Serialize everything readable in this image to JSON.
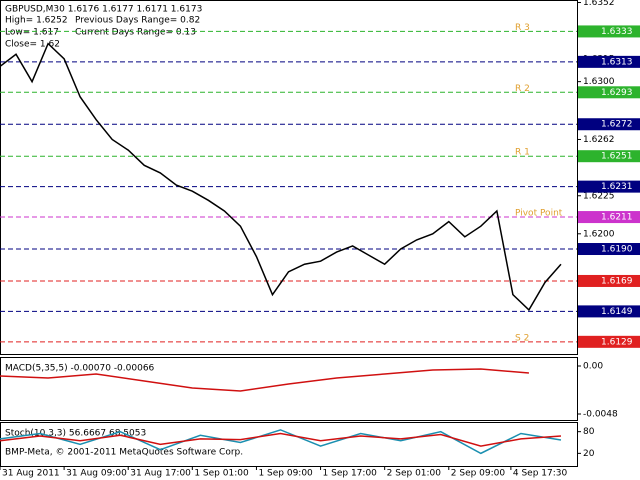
{
  "header": {
    "symbol": "GBPUSD,M30  1.6176 1.6177 1.6171 1.6173",
    "high": "High= 1.6252",
    "prev_range": "Previous Days Range= 0.82",
    "low": "Low= 1.617",
    "cur_range": "Current Days Range= 0.13",
    "close": "Close= 1.62"
  },
  "copyright": "BMP-Meta, © 2001-2011 MetaQuotes Software Corp.",
  "chart_data": [
    {
      "type": "line",
      "title": "GBPUSD,M30",
      "xlim": [
        1,
        73
      ],
      "ylim": [
        1.6121,
        1.6353
      ],
      "xticks": [
        {
          "value": 1,
          "label": "31 Aug 2011"
        },
        {
          "value": 9,
          "label": "31 Aug 09:00"
        },
        {
          "value": 17,
          "label": "31 Aug 17:00"
        },
        {
          "value": 25,
          "label": "1 Sep 01:00"
        },
        {
          "value": 33,
          "label": "1 Sep 09:00"
        },
        {
          "value": 41,
          "label": "1 Sep 17:00"
        },
        {
          "value": 49,
          "label": "2 Sep 01:00"
        },
        {
          "value": 57,
          "label": "2 Sep 09:00"
        },
        {
          "value": 64.75,
          "label": "4 Sep 17:30"
        }
      ],
      "yticks": [
        1.6352,
        1.6315,
        {
          "value": 1.63,
          "label": "1.6300"
        },
        1.6262,
        1.6225,
        {
          "value": 1.62,
          "label": "1.6200"
        }
      ],
      "levels": [
        {
          "value": 1.6333,
          "color": "#2db32d",
          "name": "R 3"
        },
        {
          "value": 1.6313,
          "color": "#000080"
        },
        {
          "value": 1.6293,
          "color": "#2db32d",
          "name": "R 2"
        },
        {
          "value": 1.6272,
          "color": "#000080"
        },
        {
          "value": 1.6251,
          "color": "#2db32d",
          "name": "R 1"
        },
        {
          "value": 1.6231,
          "color": "#000080"
        },
        {
          "value": 1.6211,
          "color": "#cc33cc",
          "name": "Pivot Point"
        },
        {
          "value": 1.619,
          "label": "1.6190",
          "color": "#000080"
        },
        {
          "value": 1.6169,
          "color": "#e02020"
        },
        {
          "value": 1.6149,
          "color": "#000080"
        },
        {
          "value": 1.6129,
          "color": "#e02020",
          "name": "S 2"
        }
      ],
      "x": [
        1,
        3,
        5,
        7,
        9,
        11,
        13,
        15,
        17,
        19,
        21,
        23,
        25,
        27,
        29,
        31,
        33,
        35,
        37,
        39,
        41,
        43,
        45,
        47,
        49,
        51,
        53,
        55,
        57,
        59,
        61,
        63,
        65,
        67,
        69,
        71
      ],
      "series": [
        {
          "name": "Close",
          "color": "#000000",
          "values": [
            1.631,
            1.6318,
            1.63,
            1.6325,
            1.6315,
            1.629,
            1.6275,
            1.6262,
            1.6255,
            1.6245,
            1.624,
            1.6232,
            1.6228,
            1.6222,
            1.6215,
            1.6205,
            1.6185,
            1.616,
            1.6175,
            1.618,
            1.6182,
            1.6188,
            1.6192,
            1.6186,
            1.618,
            1.619,
            1.6196,
            1.62,
            1.6208,
            1.6198,
            1.6205,
            1.6215,
            1.616,
            1.615,
            1.6168,
            1.618
          ]
        }
      ]
    },
    {
      "type": "line",
      "title": "MACD(5,35,5) -0.00070 -0.00066",
      "xlim": [
        1,
        73
      ],
      "ylim": [
        -0.0054,
        0.0008
      ],
      "yticks": [
        {
          "value": 0,
          "label": "0.00"
        },
        -0.0048
      ],
      "x": [
        1,
        7,
        13,
        19,
        25,
        31,
        37,
        43,
        49,
        55,
        61,
        67
      ],
      "series": [
        {
          "name": "Signal",
          "color": "#d01010",
          "values": [
            -0.001,
            -0.0012,
            -0.0008,
            -0.0015,
            -0.0022,
            -0.0025,
            -0.0018,
            -0.0012,
            -0.0008,
            -0.0004,
            -0.0003,
            -0.0007
          ]
        }
      ]
    },
    {
      "type": "line",
      "title": "Stoch(10,3,3) 56.6667 68.5053",
      "xlim": [
        1,
        73
      ],
      "ylim": [
        -15,
        104
      ],
      "yticks": [
        80,
        20
      ],
      "x": [
        1,
        6,
        11,
        16,
        21,
        26,
        31,
        36,
        41,
        46,
        51,
        56,
        61,
        66,
        71
      ],
      "series": [
        {
          "name": "Main",
          "color": "#1a8fb0",
          "values": [
            60,
            75,
            45,
            80,
            30,
            70,
            50,
            85,
            40,
            75,
            55,
            80,
            20,
            75,
            57
          ]
        },
        {
          "name": "Signal",
          "color": "#d01010",
          "values": [
            55,
            68,
            55,
            70,
            45,
            60,
            58,
            75,
            55,
            68,
            60,
            72,
            40,
            60,
            68
          ]
        }
      ]
    }
  ]
}
